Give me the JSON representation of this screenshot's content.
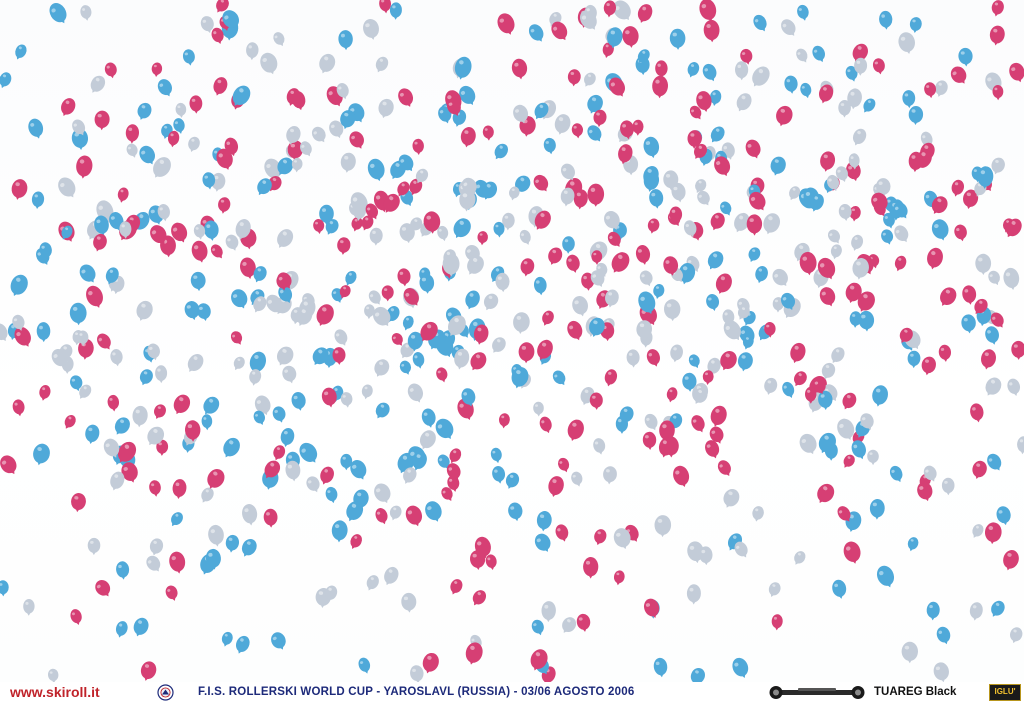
{
  "photo": {
    "subject": "balloons",
    "balloon_colors": {
      "pink": "#d63f74",
      "blue": "#4fa9d9",
      "silver": "#c3ccd8"
    },
    "sky_color": "#ffffff"
  },
  "caption": {
    "site": "www.skiroll.it",
    "event": "F.I.S. ROLLERSKI WORLD CUP - YAROSLAVL (RUSSIA) - 03/06 AGOSTO 2006",
    "brand": "TUAREG Black",
    "sponsor_logo": "IGLU'"
  },
  "colors": {
    "site_text": "#c0232a",
    "event_text": "#1d2a7a",
    "brand_text": "#111111"
  },
  "icons": {
    "fis": "fis-logo-icon",
    "rollerski": "rollerski-icon",
    "sponsor": "iglu-logo-icon"
  }
}
